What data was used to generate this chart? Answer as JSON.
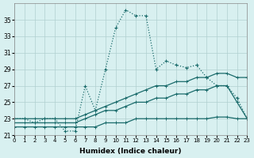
{
  "xlabel": "Humidex (Indice chaleur)",
  "background_color": "#d8f0f0",
  "line_color": "#1a6b6b",
  "grid_color": "#b0d0d0",
  "x_values": [
    0,
    1,
    2,
    3,
    4,
    5,
    6,
    7,
    8,
    9,
    10,
    11,
    12,
    13,
    14,
    15,
    16,
    17,
    18,
    19,
    20,
    21,
    22,
    23
  ],
  "dotted_y": [
    23,
    23,
    22.5,
    23,
    23,
    21.5,
    21.5,
    27,
    24,
    29,
    34,
    36.2,
    35.5,
    35.5,
    29,
    30,
    29.5,
    29.2,
    29.5,
    28,
    27,
    27,
    25.5,
    23
  ],
  "line_upper_y": [
    23,
    23,
    23,
    23,
    23,
    23,
    23,
    23.5,
    24,
    24.5,
    25,
    25.5,
    26,
    26.5,
    27,
    27,
    27.5,
    27.5,
    28,
    28,
    28.5,
    28.5,
    28,
    28
  ],
  "line_mid_y": [
    22.5,
    22.5,
    22.5,
    22.5,
    22.5,
    22.5,
    22.5,
    23,
    23.5,
    24,
    24,
    24.5,
    25,
    25,
    25.5,
    25.5,
    26,
    26,
    26.5,
    26.5,
    27,
    27,
    25,
    23
  ],
  "line_lower_y": [
    22,
    22,
    22,
    22,
    22,
    22,
    22,
    22,
    22,
    22.5,
    22.5,
    22.5,
    23,
    23,
    23,
    23,
    23,
    23,
    23,
    23,
    23.2,
    23.2,
    23,
    23
  ],
  "ylim": [
    21,
    37
  ],
  "xlim": [
    0,
    23
  ],
  "yticks": [
    21,
    23,
    25,
    27,
    29,
    31,
    33,
    35
  ],
  "xticks": [
    0,
    1,
    2,
    3,
    4,
    5,
    6,
    7,
    8,
    9,
    10,
    11,
    12,
    13,
    14,
    15,
    16,
    17,
    18,
    19,
    20,
    21,
    22,
    23
  ]
}
